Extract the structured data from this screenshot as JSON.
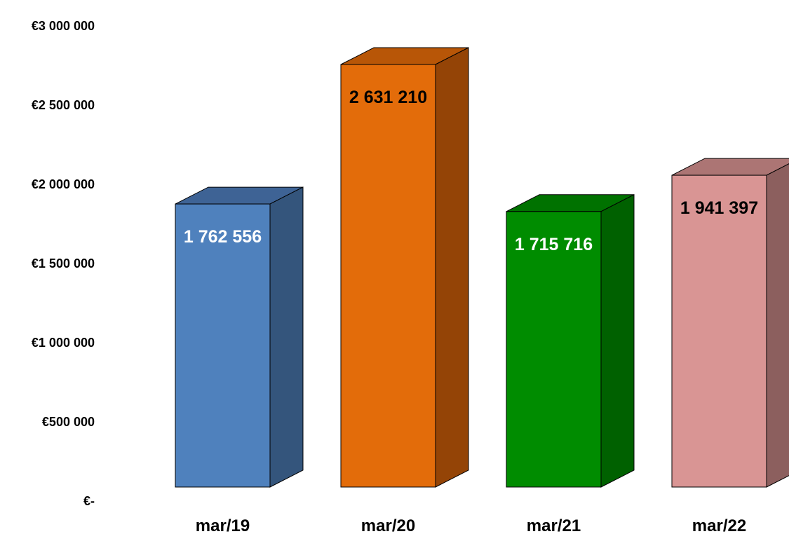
{
  "chart_data": {
    "type": "bar",
    "categories": [
      "mar/19",
      "mar/20",
      "mar/21",
      "mar/22"
    ],
    "values": [
      1762556,
      2631210,
      1715716,
      1941397
    ],
    "data_labels": [
      "1 762 556",
      "2 631 210",
      "1 715 716",
      "1 941 397"
    ],
    "ylim": [
      0,
      3000000
    ],
    "yticks": [
      0,
      500000,
      1000000,
      1500000,
      2000000,
      2500000,
      3000000
    ],
    "ytick_labels": [
      "€-",
      "€500 000",
      "€1 000 000",
      "€1 500 000",
      "€2 000 000",
      "€2 500 000",
      "€3 000 000"
    ],
    "title": "",
    "xlabel": "",
    "ylabel": "",
    "grid": false,
    "legend": "none",
    "style": "3d-column",
    "bar_colors": [
      {
        "front": "#4f81bd",
        "side": "#34557c",
        "top": "#3e6395"
      },
      {
        "front": "#e36c0a",
        "side": "#944406",
        "top": "#b85607"
      },
      {
        "front": "#008c00",
        "side": "#006100",
        "top": "#007200"
      },
      {
        "front": "#d99594",
        "side": "#8c5f5e",
        "top": "#ac7574"
      }
    ],
    "label_colors": [
      "#ffffff",
      "#000000",
      "#ffffff",
      "#000000"
    ]
  }
}
